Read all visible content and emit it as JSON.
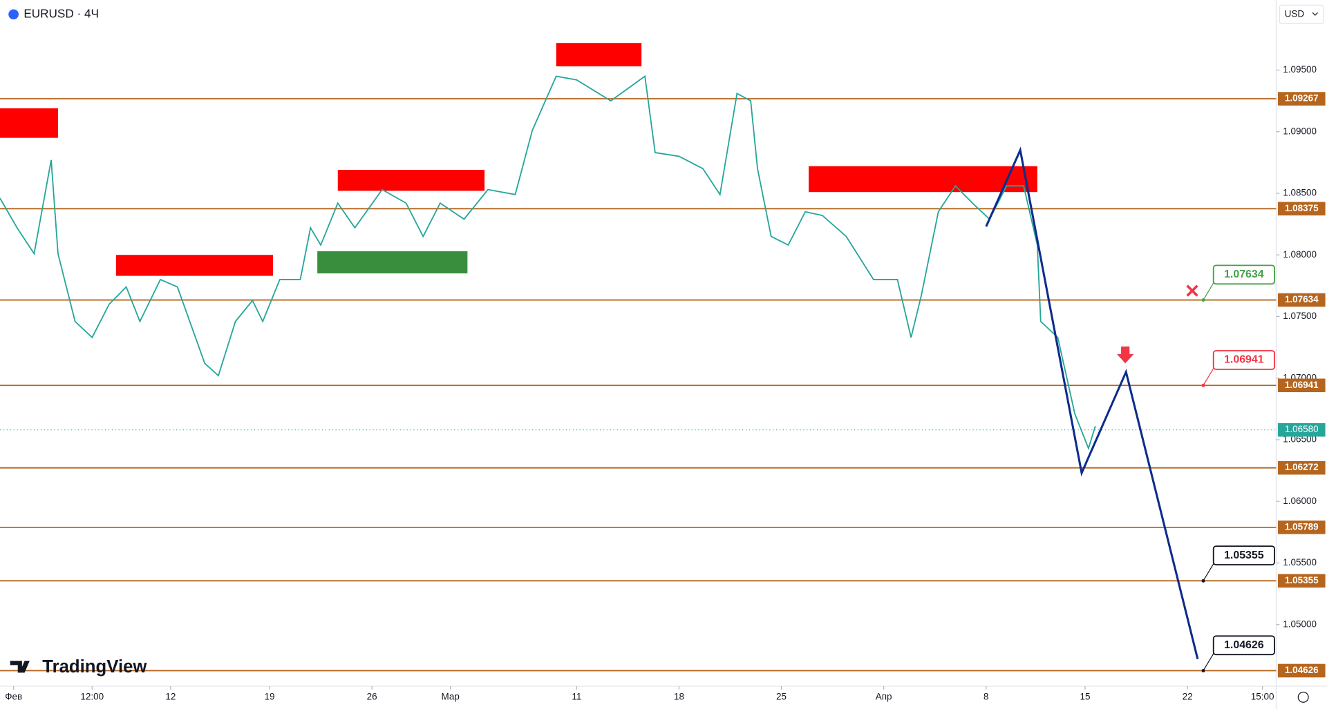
{
  "chart_data": {
    "type": "line",
    "title": "EURUSD · 4Ч",
    "currency": "USD",
    "brand": "TradingView",
    "xlim": [
      0,
      374
    ],
    "ylim": [
      1.045,
      1.1
    ],
    "xticks": [
      {
        "value": 4,
        "label": "Фев"
      },
      {
        "value": 27,
        "label": "12:00"
      },
      {
        "value": 50,
        "label": "12"
      },
      {
        "value": 79,
        "label": "19"
      },
      {
        "value": 109,
        "label": "26"
      },
      {
        "value": 132,
        "label": "Мар"
      },
      {
        "value": 169,
        "label": "11"
      },
      {
        "value": 199,
        "label": "18"
      },
      {
        "value": 229,
        "label": "25"
      },
      {
        "value": 259,
        "label": "Апр"
      },
      {
        "value": 289,
        "label": "8"
      },
      {
        "value": 318,
        "label": "15"
      },
      {
        "value": 348,
        "label": "22"
      },
      {
        "value": 370,
        "label": "15:00"
      }
    ],
    "yticks": [
      {
        "value": 1.095,
        "label": "1.09500"
      },
      {
        "value": 1.09,
        "label": "1.09000"
      },
      {
        "value": 1.085,
        "label": "1.08500"
      },
      {
        "value": 1.08,
        "label": "1.08000"
      },
      {
        "value": 1.075,
        "label": "1.07500"
      },
      {
        "value": 1.07,
        "label": "1.07000"
      },
      {
        "value": 1.065,
        "label": "1.06500"
      },
      {
        "value": 1.06,
        "label": "1.06000"
      },
      {
        "value": 1.055,
        "label": "1.05500"
      },
      {
        "value": 1.05,
        "label": "1.05000"
      }
    ],
    "series": [
      {
        "color": "#26a69a",
        "x": [
          0,
          5,
          10,
          15,
          17,
          22,
          27,
          32,
          37,
          41,
          47,
          52,
          60,
          64,
          69,
          74,
          77,
          82,
          88,
          91,
          94,
          99,
          104,
          112,
          119,
          124,
          129,
          136,
          143,
          151,
          156,
          163,
          169,
          179,
          189,
          192,
          199,
          206,
          211,
          216,
          220,
          222,
          226,
          231,
          236,
          241,
          248,
          256,
          263,
          267,
          270,
          275,
          280,
          285,
          290,
          295,
          300,
          304,
          305,
          310,
          315,
          319,
          321
        ],
        "values": [
          1.0846,
          1.0822,
          1.0801,
          1.0877,
          1.0801,
          1.0746,
          1.0733,
          1.076,
          1.0774,
          1.0746,
          1.078,
          1.0774,
          1.0712,
          1.0702,
          1.0746,
          1.0763,
          1.0746,
          1.078,
          1.078,
          1.0822,
          1.0808,
          1.0842,
          1.0822,
          1.0853,
          1.0842,
          1.0815,
          1.0842,
          1.0829,
          1.0853,
          1.0849,
          1.0901,
          1.0945,
          1.0942,
          1.0925,
          1.0945,
          1.0883,
          1.088,
          1.087,
          1.0849,
          1.0931,
          1.0925,
          1.087,
          1.0815,
          1.0808,
          1.0835,
          1.0832,
          1.0815,
          1.078,
          1.078,
          1.0733,
          1.0767,
          1.0835,
          1.0856,
          1.0842,
          1.0829,
          1.0856,
          1.0856,
          1.0808,
          1.0746,
          1.0733,
          1.0671,
          1.0643,
          1.0661
        ]
      }
    ],
    "projection": {
      "color": "#0d2c8c",
      "x": [
        289,
        299,
        317,
        330,
        351
      ],
      "values": [
        1.0823,
        1.0885,
        1.0623,
        1.0705,
        1.0472
      ]
    },
    "zones": [
      {
        "color": "#ff0000",
        "x": [
          0,
          17
        ],
        "y": [
          1.0895,
          1.0919
        ]
      },
      {
        "color": "#ff0000",
        "x": [
          34,
          80
        ],
        "y": [
          1.0783,
          1.08
        ]
      },
      {
        "color": "#ff0000",
        "x": [
          99,
          142
        ],
        "y": [
          1.0852,
          1.0869
        ]
      },
      {
        "color": "#ff0000",
        "x": [
          163,
          188
        ],
        "y": [
          1.0953,
          1.0972
        ]
      },
      {
        "color": "#ff0000",
        "x": [
          237,
          304
        ],
        "y": [
          1.0851,
          1.0872
        ]
      },
      {
        "color": "#388e3c",
        "x": [
          93,
          137
        ],
        "y": [
          1.0785,
          1.0803
        ]
      }
    ],
    "levels": [
      1.09267,
      1.08375,
      1.07634,
      1.06941,
      1.06272,
      1.05789,
      1.05355,
      1.04626
    ],
    "level_color": "#b5651d",
    "last_price": {
      "value": 1.0658,
      "label": "1.06580"
    },
    "annotations": [
      {
        "value": 1.07634,
        "label": "1.07634",
        "color": "#43a047"
      },
      {
        "value": 1.06941,
        "label": "1.06941",
        "color": "#f23645"
      },
      {
        "value": 1.05355,
        "label": "1.05355",
        "color": "#131722"
      },
      {
        "value": 1.04626,
        "label": "1.04626",
        "color": "#131722"
      }
    ]
  }
}
